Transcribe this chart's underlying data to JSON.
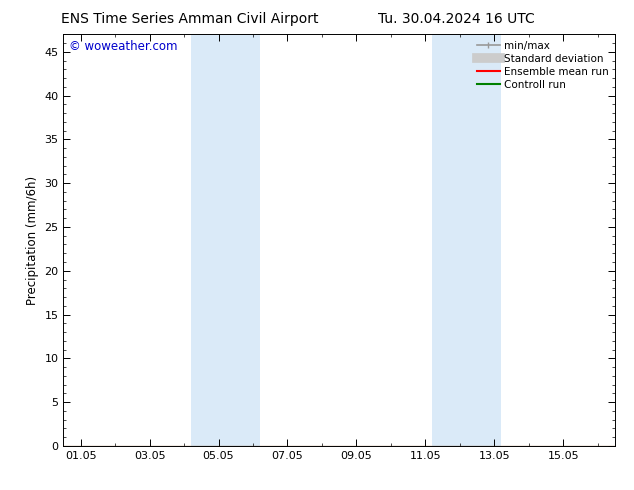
{
  "title_left": "ENS Time Series Amman Civil Airport",
  "title_right": "Tu. 30.04.2024 16 UTC",
  "ylabel": "Precipitation (mm/6h)",
  "watermark": "© woweather.com",
  "watermark_color": "#0000cc",
  "background_color": "#ffffff",
  "plot_bg_color": "#ffffff",
  "ylim": [
    0,
    47
  ],
  "yticks": [
    0,
    5,
    10,
    15,
    20,
    25,
    30,
    35,
    40,
    45
  ],
  "xtick_labels": [
    "01.05",
    "03.05",
    "05.05",
    "07.05",
    "09.05",
    "11.05",
    "13.05",
    "15.05"
  ],
  "xtick_positions": [
    0,
    2,
    4,
    6,
    8,
    10,
    12,
    14
  ],
  "xmin": -0.5,
  "xmax": 15.5,
  "shaded_regions": [
    {
      "xmin": 3.2,
      "xmax": 5.2,
      "color": "#daeaf8"
    },
    {
      "xmin": 10.2,
      "xmax": 12.2,
      "color": "#daeaf8"
    }
  ],
  "legend_items": [
    {
      "label": "min/max",
      "color": "#999999",
      "lw": 1.2
    },
    {
      "label": "Standard deviation",
      "color": "#cccccc",
      "lw": 7
    },
    {
      "label": "Ensemble mean run",
      "color": "#ff0000",
      "lw": 1.5
    },
    {
      "label": "Controll run",
      "color": "#008000",
      "lw": 1.5
    }
  ],
  "title_fontsize": 10,
  "axis_fontsize": 8.5,
  "tick_fontsize": 8,
  "legend_fontsize": 7.5,
  "watermark_fontsize": 8.5
}
